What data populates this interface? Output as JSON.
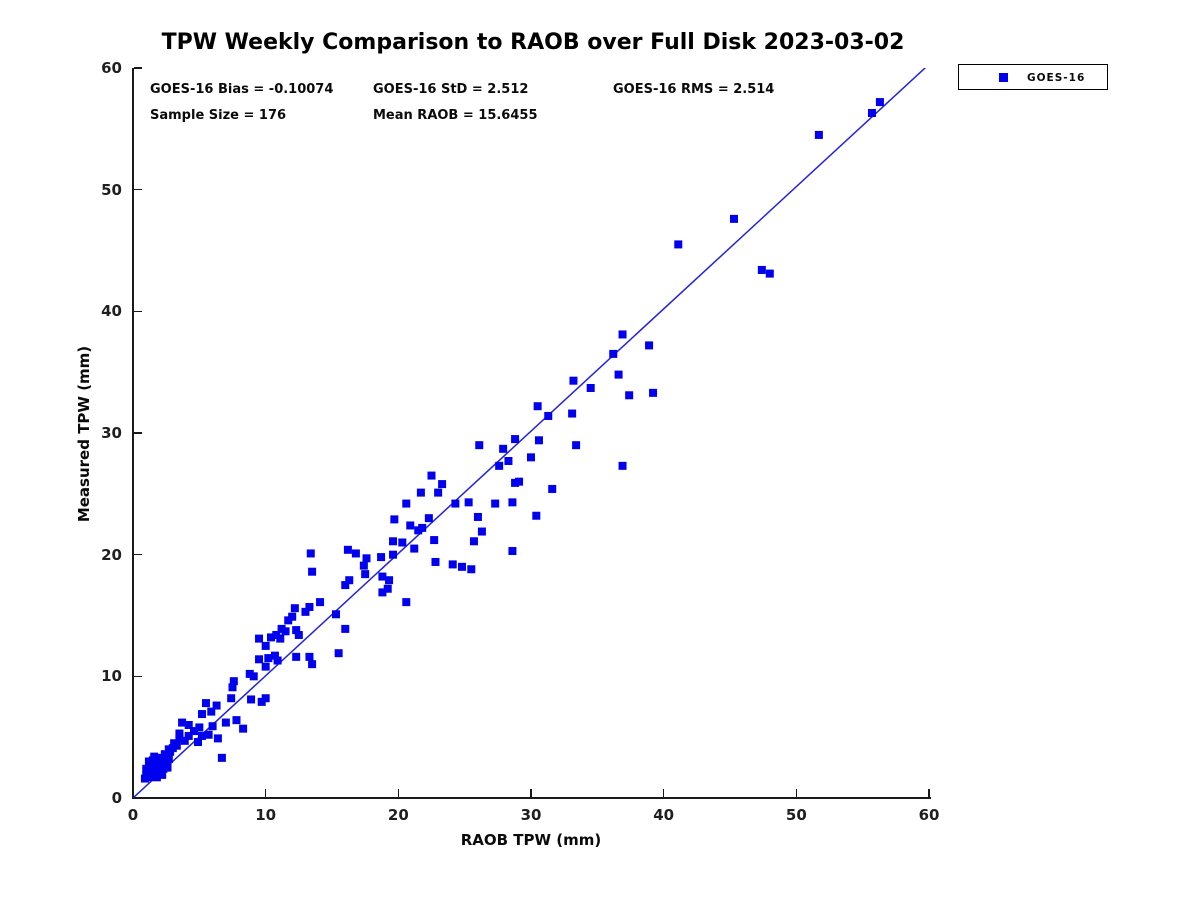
{
  "title": "TPW Weekly Comparison to RAOB over Full Disk 2023-03-02",
  "stats": {
    "bias": "GOES-16 Bias = -0.10074",
    "std": "GOES-16 StD = 2.512",
    "rms": "GOES-16 RMS = 2.514",
    "sample_size": "Sample Size = 176",
    "mean_raob": "Mean RAOB = 15.6455"
  },
  "legend": {
    "label": "GOES-16",
    "marker": "blue-square"
  },
  "axes": {
    "x_label": "RAOB TPW (mm)",
    "y_label": "Measured TPW (mm)",
    "x_ticks": [
      0,
      10,
      20,
      30,
      40,
      50,
      60
    ],
    "y_ticks": [
      0,
      10,
      20,
      30,
      40,
      50,
      60
    ],
    "x_range": [
      0,
      60
    ],
    "y_range": [
      0,
      60
    ]
  },
  "colors": {
    "marker": "#0000ee",
    "fit_line": "#2222dd",
    "axis": "#1a1a1a",
    "text": "#0a0a0a"
  },
  "chart_data": {
    "type": "scatter",
    "title": "TPW Weekly Comparison to RAOB over Full Disk 2023-03-02",
    "xlabel": "RAOB TPW (mm)",
    "ylabel": "Measured TPW (mm)",
    "xlim": [
      0,
      60
    ],
    "ylim": [
      0,
      60
    ],
    "grid": false,
    "legend_position": "top-right-outside",
    "annotations": [
      "GOES-16 Bias = -0.10074",
      "GOES-16 StD = 2.512",
      "GOES-16 RMS = 2.514",
      "Sample Size = 176",
      "Mean RAOB = 15.6455"
    ],
    "reference_line": {
      "from": [
        0,
        0
      ],
      "to": [
        60,
        60.3
      ]
    },
    "series": [
      {
        "name": "GOES-16",
        "marker": "square",
        "color": "#0000ee",
        "points": [
          [
            1.0,
            1.9
          ],
          [
            1.1,
            2.2
          ],
          [
            1.2,
            1.7
          ],
          [
            1.3,
            2.5
          ],
          [
            1.3,
            2.0
          ],
          [
            1.4,
            2.9
          ],
          [
            1.5,
            2.3
          ],
          [
            1.5,
            1.8
          ],
          [
            1.6,
            2.6
          ],
          [
            1.7,
            2.1
          ],
          [
            1.7,
            3.0
          ],
          [
            1.8,
            2.4
          ],
          [
            1.9,
            2.8
          ],
          [
            2.0,
            2.2
          ],
          [
            2.0,
            3.2
          ],
          [
            2.1,
            2.6
          ],
          [
            2.2,
            3.0
          ],
          [
            2.3,
            2.4
          ],
          [
            2.4,
            3.3
          ],
          [
            2.5,
            2.8
          ],
          [
            1.2,
            3.0
          ],
          [
            0.9,
            1.6
          ],
          [
            2.6,
            3.1
          ],
          [
            1.6,
            3.4
          ],
          [
            2.2,
            1.9
          ],
          [
            1.8,
            1.7
          ],
          [
            2.6,
            2.5
          ],
          [
            1.0,
            2.4
          ],
          [
            1.1,
            1.8
          ],
          [
            1.4,
            2.1
          ],
          [
            1.6,
            1.9
          ],
          [
            1.8,
            3.1
          ],
          [
            1.9,
            2.3
          ],
          [
            2.1,
            3.3
          ],
          [
            2.3,
            2.9
          ],
          [
            2.5,
            3.5
          ],
          [
            2.7,
            3.2
          ],
          [
            1.3,
            2.8
          ],
          [
            1.5,
            3.1
          ],
          [
            2.0,
            2.7
          ],
          [
            2.4,
            2.5
          ],
          [
            1.7,
            2.5
          ],
          [
            2.8,
            3.8
          ],
          [
            3.0,
            4.1
          ],
          [
            3.3,
            4.3
          ],
          [
            2.4,
            3.6
          ],
          [
            2.7,
            4.0
          ],
          [
            3.1,
            4.5
          ],
          [
            3.5,
            4.9
          ],
          [
            3.9,
            4.7
          ],
          [
            4.2,
            5.1
          ],
          [
            4.6,
            5.5
          ],
          [
            5.0,
            5.8
          ],
          [
            3.5,
            5.3
          ],
          [
            3.7,
            6.2
          ],
          [
            4.2,
            6.0
          ],
          [
            5.7,
            5.2
          ],
          [
            6.0,
            5.9
          ],
          [
            6.4,
            4.9
          ],
          [
            6.7,
            3.3
          ],
          [
            4.9,
            4.6
          ],
          [
            5.2,
            5.1
          ],
          [
            5.5,
            7.8
          ],
          [
            5.2,
            6.9
          ],
          [
            5.9,
            7.1
          ],
          [
            6.3,
            7.6
          ],
          [
            7.0,
            6.2
          ],
          [
            7.4,
            8.2
          ],
          [
            7.8,
            6.4
          ],
          [
            8.3,
            5.7
          ],
          [
            8.9,
            8.1
          ],
          [
            9.7,
            7.9
          ],
          [
            10.0,
            8.2
          ],
          [
            7.6,
            9.6
          ],
          [
            7.5,
            9.1
          ],
          [
            8.8,
            10.2
          ],
          [
            9.1,
            10.0
          ],
          [
            10.0,
            10.8
          ],
          [
            9.5,
            11.4
          ],
          [
            10.2,
            11.5
          ],
          [
            10.7,
            11.7
          ],
          [
            10.9,
            11.3
          ],
          [
            12.3,
            11.6
          ],
          [
            13.3,
            11.6
          ],
          [
            13.5,
            11.0
          ],
          [
            15.5,
            11.9
          ],
          [
            10.0,
            12.5
          ],
          [
            9.5,
            13.1
          ],
          [
            10.4,
            13.2
          ],
          [
            10.8,
            13.4
          ],
          [
            11.1,
            13.1
          ],
          [
            11.2,
            13.9
          ],
          [
            11.5,
            13.7
          ],
          [
            12.3,
            13.8
          ],
          [
            12.5,
            13.4
          ],
          [
            11.7,
            14.6
          ],
          [
            12.0,
            14.9
          ],
          [
            12.2,
            15.6
          ],
          [
            16.0,
            13.9
          ],
          [
            13.0,
            15.3
          ],
          [
            13.3,
            15.7
          ],
          [
            14.1,
            16.1
          ],
          [
            15.3,
            15.1
          ],
          [
            20.6,
            16.1
          ],
          [
            13.5,
            18.6
          ],
          [
            16.0,
            17.5
          ],
          [
            16.3,
            17.9
          ],
          [
            17.5,
            18.4
          ],
          [
            18.8,
            18.2
          ],
          [
            19.3,
            17.9
          ],
          [
            19.2,
            17.2
          ],
          [
            18.8,
            16.9
          ],
          [
            17.4,
            19.1
          ],
          [
            17.6,
            19.7
          ],
          [
            18.7,
            19.8
          ],
          [
            19.6,
            20.0
          ],
          [
            16.8,
            20.1
          ],
          [
            16.2,
            20.4
          ],
          [
            13.4,
            20.1
          ],
          [
            19.7,
            22.9
          ],
          [
            20.3,
            21.0
          ],
          [
            19.6,
            21.1
          ],
          [
            21.2,
            20.5
          ],
          [
            20.9,
            22.4
          ],
          [
            21.5,
            22.0
          ],
          [
            21.8,
            22.2
          ],
          [
            22.3,
            23.0
          ],
          [
            22.7,
            21.2
          ],
          [
            22.8,
            19.4
          ],
          [
            24.1,
            19.2
          ],
          [
            24.8,
            19.0
          ],
          [
            25.5,
            18.8
          ],
          [
            25.7,
            21.1
          ],
          [
            26.3,
            21.9
          ],
          [
            26.0,
            23.1
          ],
          [
            28.6,
            20.3
          ],
          [
            20.6,
            24.2
          ],
          [
            21.7,
            25.1
          ],
          [
            22.5,
            26.5
          ],
          [
            23.3,
            25.8
          ],
          [
            23.0,
            25.1
          ],
          [
            24.3,
            24.2
          ],
          [
            25.3,
            24.3
          ],
          [
            27.3,
            24.2
          ],
          [
            28.6,
            24.3
          ],
          [
            28.8,
            25.9
          ],
          [
            29.1,
            26.0
          ],
          [
            31.6,
            25.4
          ],
          [
            30.4,
            23.2
          ],
          [
            26.1,
            29.0
          ],
          [
            27.6,
            27.3
          ],
          [
            27.9,
            28.7
          ],
          [
            28.3,
            27.7
          ],
          [
            30.0,
            28.0
          ],
          [
            28.8,
            29.5
          ],
          [
            30.6,
            29.4
          ],
          [
            33.4,
            29.0
          ],
          [
            36.9,
            27.3
          ],
          [
            30.5,
            32.2
          ],
          [
            31.3,
            31.4
          ],
          [
            33.1,
            31.6
          ],
          [
            33.2,
            34.3
          ],
          [
            34.5,
            33.7
          ],
          [
            37.4,
            33.1
          ],
          [
            39.2,
            33.3
          ],
          [
            36.6,
            34.8
          ],
          [
            36.2,
            36.5
          ],
          [
            36.9,
            38.1
          ],
          [
            38.9,
            37.2
          ],
          [
            41.1,
            45.5
          ],
          [
            45.3,
            47.6
          ],
          [
            47.4,
            43.4
          ],
          [
            48.0,
            43.1
          ],
          [
            51.7,
            54.5
          ],
          [
            55.7,
            56.3
          ],
          [
            56.3,
            57.2
          ]
        ]
      }
    ]
  }
}
